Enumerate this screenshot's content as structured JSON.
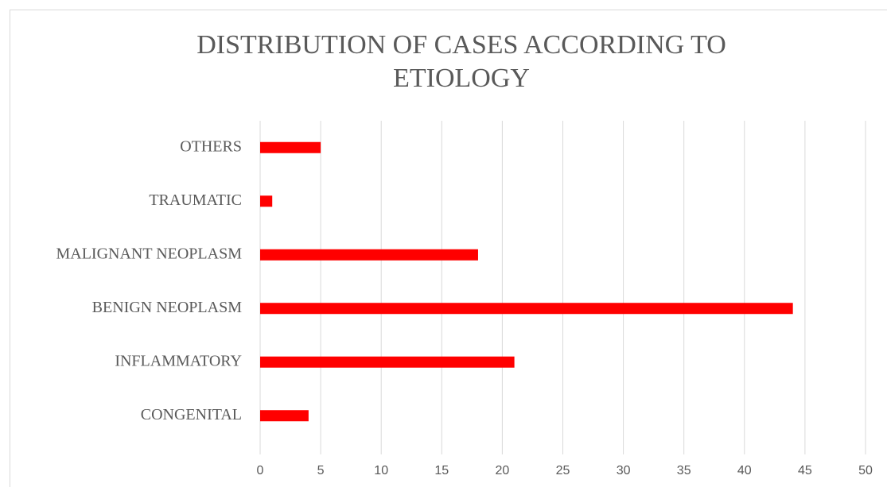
{
  "chart_data": {
    "type": "barh",
    "title": "DISTRIBUTION OF CASES ACCORDING TO ETIOLOGY",
    "categories": [
      "CONGENITAL",
      "INFLAMMATORY",
      "BENIGN NEOPLASM",
      "MALIGNANT NEOPLASM",
      "TRAUMATIC",
      "OTHERS"
    ],
    "values": [
      4,
      21,
      44,
      18,
      1,
      5
    ],
    "color": "#ff0000",
    "xlim": [
      0,
      50
    ],
    "xticks": [
      0,
      5,
      10,
      15,
      20,
      25,
      30,
      35,
      40,
      45,
      50
    ],
    "grid": true
  }
}
